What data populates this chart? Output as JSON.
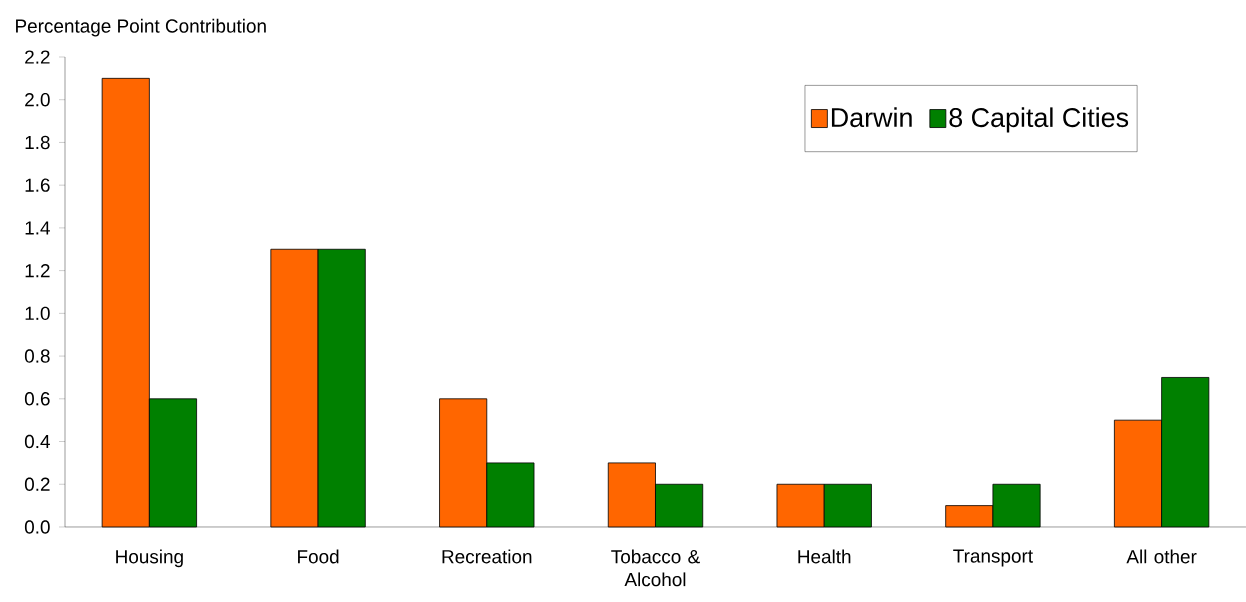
{
  "chart_data": {
    "type": "bar",
    "ylabel": "Percentage Point Contribution",
    "categories": [
      "Housing",
      "Food",
      "Recreation",
      "Tobacco & Alcohol",
      "Health",
      "Transport",
      "All other"
    ],
    "series": [
      {
        "name": "Darwin",
        "color": "#ff6600",
        "values": [
          2.1,
          1.3,
          0.6,
          0.3,
          0.2,
          0.1,
          0.5
        ]
      },
      {
        "name": "8 Capital Cities",
        "color": "#008000",
        "values": [
          0.6,
          1.3,
          0.3,
          0.2,
          0.2,
          0.2,
          0.7
        ]
      }
    ],
    "ylim": [
      0,
      2.2
    ],
    "yticks": [
      {
        "value": 0,
        "label": "0.0"
      },
      {
        "value": 0.2,
        "label": "0.2"
      },
      {
        "value": 0.4,
        "label": "0.4"
      },
      {
        "value": 0.6,
        "label": "0.6"
      },
      {
        "value": 0.8,
        "label": "0.8"
      },
      {
        "value": 1.0,
        "label": "1.0"
      },
      {
        "value": 1.2,
        "label": "1.2"
      },
      {
        "value": 1.4,
        "label": "1.4"
      },
      {
        "value": 1.6,
        "label": "1.6"
      },
      {
        "value": 1.8,
        "label": "1.8"
      },
      {
        "value": 2.0,
        "label": "2.0"
      },
      {
        "value": 2.2,
        "label": "2.2"
      }
    ],
    "grid": false,
    "legend": "top right"
  }
}
